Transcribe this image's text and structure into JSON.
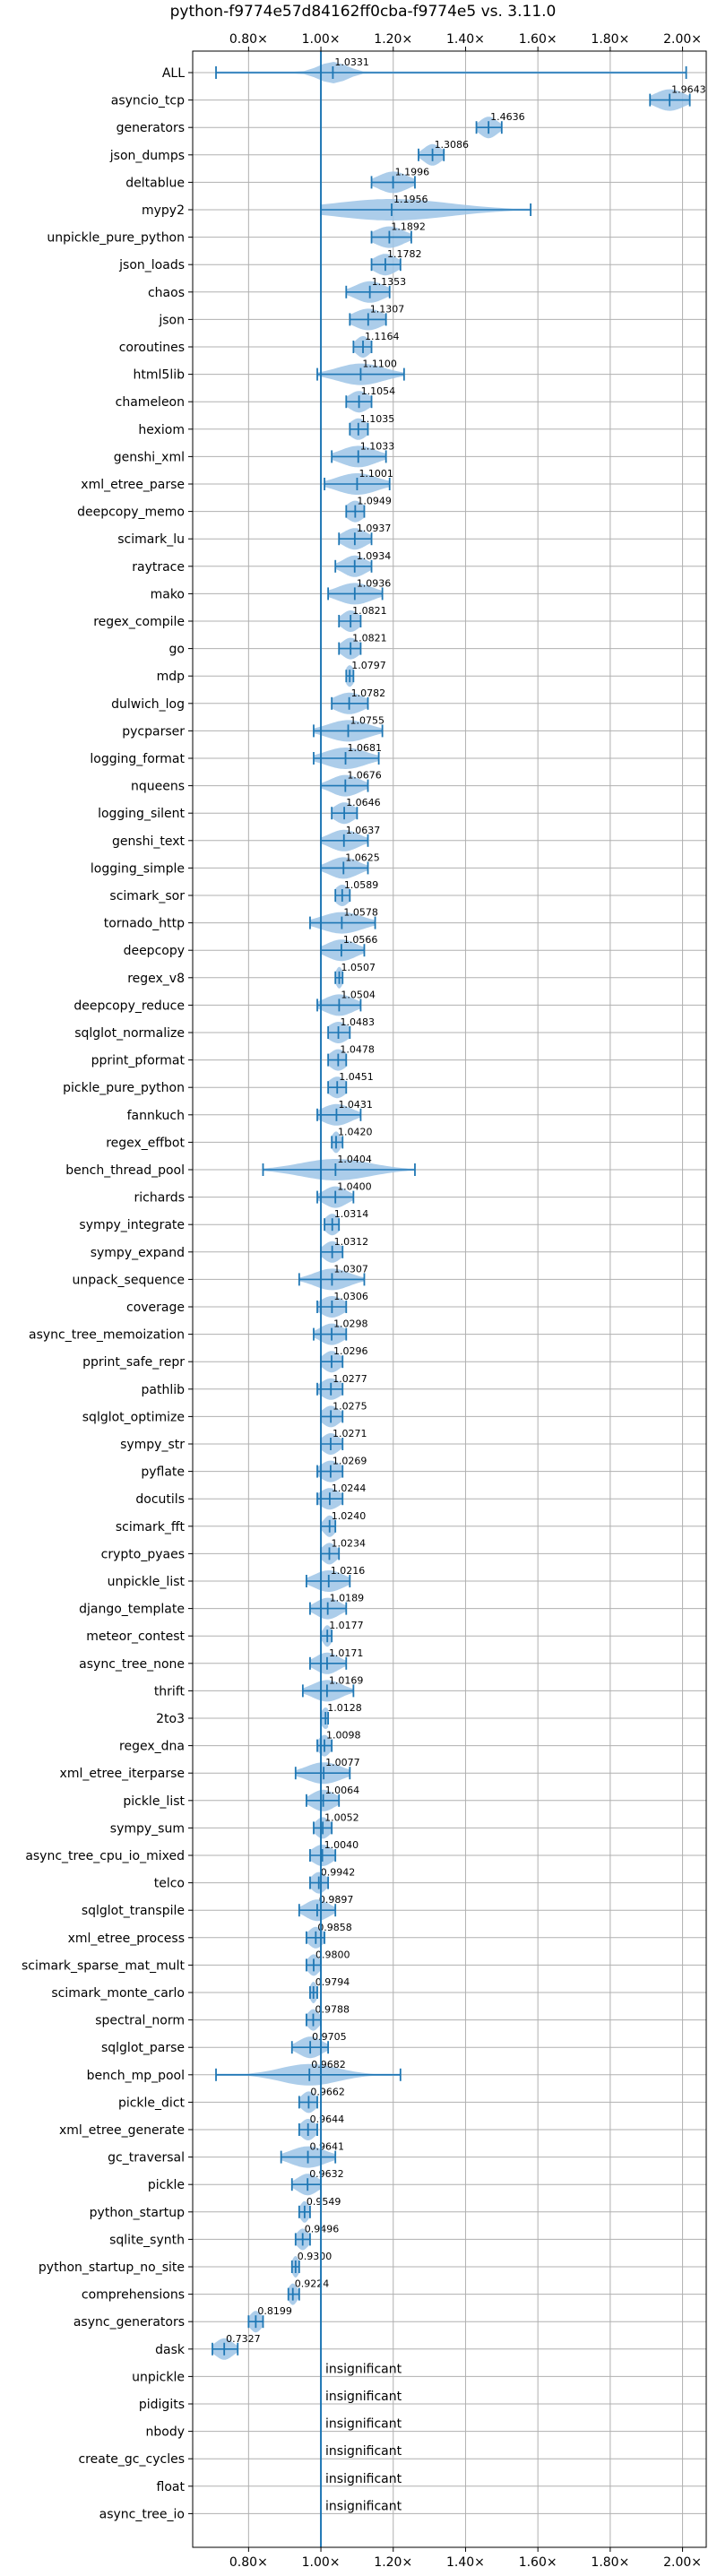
{
  "chart_data": {
    "type": "violin",
    "title": "python-f9774e57d84162ff0cba-f9774e5 vs. 3.11.0",
    "xlabel": "",
    "ylabel": "",
    "xlim": [
      0.6455,
      2.0655
    ],
    "x_ticks": [
      {
        "value": 0.8,
        "label": "0.80×"
      },
      {
        "value": 1.0,
        "label": "1.00×"
      },
      {
        "value": 1.2,
        "label": "1.20×"
      },
      {
        "value": 1.4,
        "label": "1.40×"
      },
      {
        "value": 1.6,
        "label": "1.60×"
      },
      {
        "value": 1.8,
        "label": "1.80×"
      },
      {
        "value": 2.0,
        "label": "2.00×"
      }
    ],
    "x_ticks_top": true,
    "x_ticks_bottom": true,
    "reference_line": 1.0,
    "grid": true,
    "colors": {
      "violin": "#9ec4e6",
      "lines": "#1f77b4",
      "grid": "#b0b0b0",
      "axis": "#000000"
    },
    "insignificant_text": "insignificant",
    "benchmarks": [
      {
        "name": "ALL",
        "mean": 1.0331,
        "min": 0.71,
        "max": 2.01,
        "spread": 0.05
      },
      {
        "name": "asyncio_tcp",
        "mean": 1.9643,
        "min": 1.91,
        "max": 2.02,
        "spread": 0.05
      },
      {
        "name": "generators",
        "mean": 1.4636,
        "min": 1.43,
        "max": 1.5,
        "spread": 0.03
      },
      {
        "name": "json_dumps",
        "mean": 1.3086,
        "min": 1.27,
        "max": 1.34,
        "spread": 0.03
      },
      {
        "name": "deltablue",
        "mean": 1.1996,
        "min": 1.14,
        "max": 1.26,
        "spread": 0.05
      },
      {
        "name": "mypy2",
        "mean": 1.1956,
        "min": 1.0,
        "max": 1.58,
        "spread": 0.2
      },
      {
        "name": "unpickle_pure_python",
        "mean": 1.1892,
        "min": 1.14,
        "max": 1.25,
        "spread": 0.05
      },
      {
        "name": "json_loads",
        "mean": 1.1782,
        "min": 1.14,
        "max": 1.22,
        "spread": 0.04
      },
      {
        "name": "chaos",
        "mean": 1.1353,
        "min": 1.07,
        "max": 1.19,
        "spread": 0.05
      },
      {
        "name": "json",
        "mean": 1.1307,
        "min": 1.08,
        "max": 1.18,
        "spread": 0.05
      },
      {
        "name": "coroutines",
        "mean": 1.1164,
        "min": 1.09,
        "max": 1.14,
        "spread": 0.025
      },
      {
        "name": "html5lib",
        "mean": 1.11,
        "min": 0.99,
        "max": 1.23,
        "spread": 0.08
      },
      {
        "name": "chameleon",
        "mean": 1.1054,
        "min": 1.07,
        "max": 1.14,
        "spread": 0.035
      },
      {
        "name": "hexiom",
        "mean": 1.1035,
        "min": 1.08,
        "max": 1.13,
        "spread": 0.03
      },
      {
        "name": "genshi_xml",
        "mean": 1.1033,
        "min": 1.03,
        "max": 1.18,
        "spread": 0.06
      },
      {
        "name": "xml_etree_parse",
        "mean": 1.1001,
        "min": 1.01,
        "max": 1.19,
        "spread": 0.07
      },
      {
        "name": "deepcopy_memo",
        "mean": 1.0949,
        "min": 1.07,
        "max": 1.12,
        "spread": 0.03
      },
      {
        "name": "scimark_lu",
        "mean": 1.0937,
        "min": 1.05,
        "max": 1.14,
        "spread": 0.04
      },
      {
        "name": "raytrace",
        "mean": 1.0934,
        "min": 1.04,
        "max": 1.14,
        "spread": 0.04
      },
      {
        "name": "mako",
        "mean": 1.0936,
        "min": 1.02,
        "max": 1.17,
        "spread": 0.06
      },
      {
        "name": "regex_compile",
        "mean": 1.0821,
        "min": 1.05,
        "max": 1.11,
        "spread": 0.03
      },
      {
        "name": "go",
        "mean": 1.0821,
        "min": 1.05,
        "max": 1.11,
        "spread": 0.03
      },
      {
        "name": "mdp",
        "mean": 1.0797,
        "min": 1.07,
        "max": 1.09,
        "spread": 0.015
      },
      {
        "name": "dulwich_log",
        "mean": 1.0782,
        "min": 1.03,
        "max": 1.13,
        "spread": 0.05
      },
      {
        "name": "pycparser",
        "mean": 1.0755,
        "min": 0.98,
        "max": 1.17,
        "spread": 0.07
      },
      {
        "name": "logging_format",
        "mean": 1.0681,
        "min": 0.98,
        "max": 1.16,
        "spread": 0.07
      },
      {
        "name": "nqueens",
        "mean": 1.0676,
        "min": 1.0,
        "max": 1.13,
        "spread": 0.05
      },
      {
        "name": "logging_silent",
        "mean": 1.0646,
        "min": 1.03,
        "max": 1.1,
        "spread": 0.035
      },
      {
        "name": "genshi_text",
        "mean": 1.0637,
        "min": 1.0,
        "max": 1.13,
        "spread": 0.05
      },
      {
        "name": "logging_simple",
        "mean": 1.0625,
        "min": 1.0,
        "max": 1.13,
        "spread": 0.05
      },
      {
        "name": "scimark_sor",
        "mean": 1.0589,
        "min": 1.04,
        "max": 1.08,
        "spread": 0.025
      },
      {
        "name": "tornado_http",
        "mean": 1.0578,
        "min": 0.97,
        "max": 1.15,
        "spread": 0.07
      },
      {
        "name": "deepcopy",
        "mean": 1.0566,
        "min": 1.0,
        "max": 1.12,
        "spread": 0.05
      },
      {
        "name": "regex_v8",
        "mean": 1.0507,
        "min": 1.04,
        "max": 1.06,
        "spread": 0.012
      },
      {
        "name": "deepcopy_reduce",
        "mean": 1.0504,
        "min": 0.99,
        "max": 1.11,
        "spread": 0.05
      },
      {
        "name": "sqlglot_normalize",
        "mean": 1.0483,
        "min": 1.02,
        "max": 1.08,
        "spread": 0.035
      },
      {
        "name": "pprint_pformat",
        "mean": 1.0478,
        "min": 1.02,
        "max": 1.07,
        "spread": 0.03
      },
      {
        "name": "pickle_pure_python",
        "mean": 1.0451,
        "min": 1.02,
        "max": 1.07,
        "spread": 0.03
      },
      {
        "name": "fannkuch",
        "mean": 1.0431,
        "min": 0.99,
        "max": 1.11,
        "spread": 0.05
      },
      {
        "name": "regex_effbot",
        "mean": 1.042,
        "min": 1.03,
        "max": 1.06,
        "spread": 0.015
      },
      {
        "name": "bench_thread_pool",
        "mean": 1.0404,
        "min": 0.84,
        "max": 1.26,
        "spread": 0.12
      },
      {
        "name": "richards",
        "mean": 1.04,
        "min": 0.99,
        "max": 1.09,
        "spread": 0.04
      },
      {
        "name": "sympy_integrate",
        "mean": 1.0314,
        "min": 1.01,
        "max": 1.05,
        "spread": 0.025
      },
      {
        "name": "sympy_expand",
        "mean": 1.0312,
        "min": 1.0,
        "max": 1.06,
        "spread": 0.03
      },
      {
        "name": "unpack_sequence",
        "mean": 1.0307,
        "min": 0.94,
        "max": 1.12,
        "spread": 0.06
      },
      {
        "name": "coverage",
        "mean": 1.0306,
        "min": 0.99,
        "max": 1.07,
        "spread": 0.04
      },
      {
        "name": "async_tree_memoization",
        "mean": 1.0298,
        "min": 0.98,
        "max": 1.07,
        "spread": 0.04
      },
      {
        "name": "pprint_safe_repr",
        "mean": 1.0296,
        "min": 1.0,
        "max": 1.06,
        "spread": 0.03
      },
      {
        "name": "pathlib",
        "mean": 1.0277,
        "min": 0.99,
        "max": 1.06,
        "spread": 0.035
      },
      {
        "name": "sqlglot_optimize",
        "mean": 1.0275,
        "min": 1.0,
        "max": 1.06,
        "spread": 0.03
      },
      {
        "name": "sympy_str",
        "mean": 1.0271,
        "min": 1.0,
        "max": 1.06,
        "spread": 0.03
      },
      {
        "name": "pyflate",
        "mean": 1.0269,
        "min": 0.99,
        "max": 1.06,
        "spread": 0.035
      },
      {
        "name": "docutils",
        "mean": 1.0244,
        "min": 0.99,
        "max": 1.06,
        "spread": 0.035
      },
      {
        "name": "scimark_fft",
        "mean": 1.024,
        "min": 1.0,
        "max": 1.04,
        "spread": 0.02
      },
      {
        "name": "crypto_pyaes",
        "mean": 1.0234,
        "min": 1.0,
        "max": 1.05,
        "spread": 0.025
      },
      {
        "name": "unpickle_list",
        "mean": 1.0216,
        "min": 0.96,
        "max": 1.08,
        "spread": 0.05
      },
      {
        "name": "django_template",
        "mean": 1.0189,
        "min": 0.97,
        "max": 1.07,
        "spread": 0.04
      },
      {
        "name": "meteor_contest",
        "mean": 1.0177,
        "min": 1.0,
        "max": 1.03,
        "spread": 0.015
      },
      {
        "name": "async_tree_none",
        "mean": 1.0171,
        "min": 0.97,
        "max": 1.07,
        "spread": 0.04
      },
      {
        "name": "thrift",
        "mean": 1.0169,
        "min": 0.95,
        "max": 1.09,
        "spread": 0.05
      },
      {
        "name": "2to3",
        "mean": 1.0128,
        "min": 1.0,
        "max": 1.02,
        "spread": 0.015
      },
      {
        "name": "regex_dna",
        "mean": 1.0098,
        "min": 0.99,
        "max": 1.03,
        "spread": 0.02
      },
      {
        "name": "xml_etree_iterparse",
        "mean": 1.0077,
        "min": 0.93,
        "max": 1.08,
        "spread": 0.06
      },
      {
        "name": "pickle_list",
        "mean": 1.0064,
        "min": 0.96,
        "max": 1.05,
        "spread": 0.04
      },
      {
        "name": "sympy_sum",
        "mean": 1.0052,
        "min": 0.98,
        "max": 1.03,
        "spread": 0.025
      },
      {
        "name": "async_tree_cpu_io_mixed",
        "mean": 1.004,
        "min": 0.97,
        "max": 1.04,
        "spread": 0.035
      },
      {
        "name": "telco",
        "mean": 0.9942,
        "min": 0.97,
        "max": 1.02,
        "spread": 0.025
      },
      {
        "name": "sqlglot_transpile",
        "mean": 0.9897,
        "min": 0.94,
        "max": 1.04,
        "spread": 0.04
      },
      {
        "name": "xml_etree_process",
        "mean": 0.9858,
        "min": 0.96,
        "max": 1.01,
        "spread": 0.025
      },
      {
        "name": "scimark_sparse_mat_mult",
        "mean": 0.98,
        "min": 0.96,
        "max": 1.0,
        "spread": 0.02
      },
      {
        "name": "scimark_monte_carlo",
        "mean": 0.9794,
        "min": 0.97,
        "max": 0.99,
        "spread": 0.012
      },
      {
        "name": "spectral_norm",
        "mean": 0.9788,
        "min": 0.96,
        "max": 1.0,
        "spread": 0.02
      },
      {
        "name": "sqlglot_parse",
        "mean": 0.9705,
        "min": 0.92,
        "max": 1.02,
        "spread": 0.04
      },
      {
        "name": "bench_mp_pool",
        "mean": 0.9682,
        "min": 0.71,
        "max": 1.22,
        "spread": 0.1
      },
      {
        "name": "pickle_dict",
        "mean": 0.9662,
        "min": 0.94,
        "max": 0.99,
        "spread": 0.025
      },
      {
        "name": "xml_etree_generate",
        "mean": 0.9644,
        "min": 0.94,
        "max": 0.99,
        "spread": 0.025
      },
      {
        "name": "gc_traversal",
        "mean": 0.9641,
        "min": 0.89,
        "max": 1.04,
        "spread": 0.06
      },
      {
        "name": "pickle",
        "mean": 0.9632,
        "min": 0.92,
        "max": 1.0,
        "spread": 0.035
      },
      {
        "name": "python_startup",
        "mean": 0.9549,
        "min": 0.94,
        "max": 0.97,
        "spread": 0.015
      },
      {
        "name": "sqlite_synth",
        "mean": 0.9496,
        "min": 0.93,
        "max": 0.97,
        "spread": 0.02
      },
      {
        "name": "python_startup_no_site",
        "mean": 0.93,
        "min": 0.92,
        "max": 0.94,
        "spread": 0.012
      },
      {
        "name": "comprehensions",
        "mean": 0.9224,
        "min": 0.91,
        "max": 0.94,
        "spread": 0.015
      },
      {
        "name": "async_generators",
        "mean": 0.8199,
        "min": 0.8,
        "max": 0.84,
        "spread": 0.02
      },
      {
        "name": "dask",
        "mean": 0.7327,
        "min": 0.7,
        "max": 0.77,
        "spread": 0.03
      },
      {
        "name": "unpickle",
        "mean": null,
        "insignificant": true
      },
      {
        "name": "pidigits",
        "mean": null,
        "insignificant": true
      },
      {
        "name": "nbody",
        "mean": null,
        "insignificant": true
      },
      {
        "name": "create_gc_cycles",
        "mean": null,
        "insignificant": true
      },
      {
        "name": "float",
        "mean": null,
        "insignificant": true
      },
      {
        "name": "async_tree_io",
        "mean": null,
        "insignificant": true
      }
    ]
  }
}
